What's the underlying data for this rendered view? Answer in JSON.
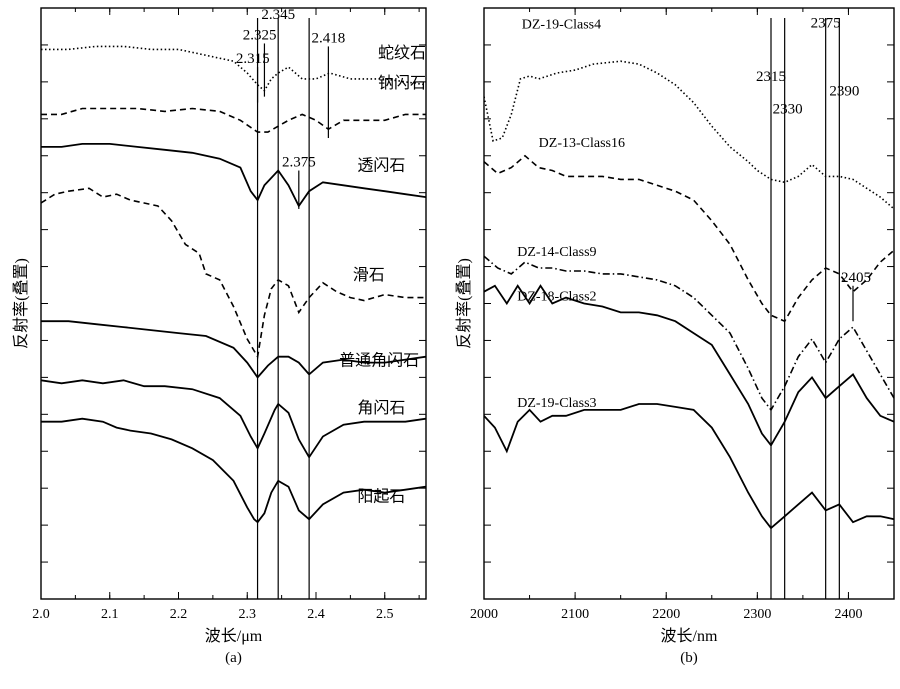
{
  "chart_data": [
    {
      "type": "line",
      "panel_label": "(a)",
      "xlabel": "波长/μm",
      "ylabel": "反射率(叠置)",
      "xlim": [
        2.0,
        2.56
      ],
      "xticks": [
        "2.0",
        "2.1",
        "2.2",
        "2.3",
        "2.4",
        "2.5"
      ],
      "xtick_values": [
        2.0,
        2.1,
        2.2,
        2.3,
        2.4,
        2.5
      ],
      "yticks_labeled": false,
      "note_y": "reflectance stacked with vertical offsets; y values are relative stacked units, 0 = bottom of panel, 100 = top",
      "ylim": [
        0,
        100
      ],
      "series": [
        {
          "name": "蛇纹石",
          "dash": "dotted",
          "x": [
            2.0,
            2.04,
            2.08,
            2.12,
            2.16,
            2.2,
            2.24,
            2.28,
            2.3,
            2.315,
            2.325,
            2.335,
            2.345,
            2.36,
            2.38,
            2.4,
            2.42,
            2.45,
            2.5,
            2.56
          ],
          "y": [
            93,
            93,
            93.5,
            93.5,
            93,
            93,
            92,
            91,
            89,
            87,
            86,
            88,
            89,
            90,
            88,
            88,
            89,
            88,
            88,
            87
          ]
        },
        {
          "name": "钠闪石",
          "dash": "dashed",
          "x": [
            2.0,
            2.03,
            2.06,
            2.1,
            2.14,
            2.18,
            2.22,
            2.26,
            2.29,
            2.315,
            2.33,
            2.345,
            2.36,
            2.38,
            2.4,
            2.418,
            2.44,
            2.47,
            2.5,
            2.53,
            2.56
          ],
          "y": [
            82,
            82,
            83,
            83,
            83,
            82.5,
            83,
            82.5,
            81,
            79,
            79,
            80,
            81,
            82,
            81,
            79.5,
            81,
            81,
            81,
            82,
            82
          ]
        },
        {
          "name": "透闪石",
          "dash": "solid",
          "x": [
            2.0,
            2.03,
            2.06,
            2.1,
            2.14,
            2.18,
            2.22,
            2.26,
            2.29,
            2.305,
            2.315,
            2.325,
            2.345,
            2.36,
            2.375,
            2.39,
            2.41,
            2.44,
            2.47,
            2.5,
            2.53,
            2.56
          ],
          "y": [
            76.5,
            76.5,
            77,
            77,
            76.5,
            76,
            75.5,
            74.5,
            73,
            69,
            67.5,
            70,
            72.5,
            70,
            66.5,
            69,
            70.5,
            70,
            69.5,
            69,
            68.5,
            68
          ]
        },
        {
          "name": "滑石",
          "dash": "dashed",
          "x": [
            2.0,
            2.02,
            2.04,
            2.07,
            2.09,
            2.11,
            2.13,
            2.15,
            2.17,
            2.19,
            2.21,
            2.23,
            2.24,
            2.26,
            2.28,
            2.3,
            2.315,
            2.325,
            2.335,
            2.345,
            2.36,
            2.375,
            2.39,
            2.41,
            2.43,
            2.45,
            2.47,
            2.5,
            2.53,
            2.56
          ],
          "y": [
            67,
            68.5,
            69,
            69.5,
            68,
            68.5,
            67.5,
            67,
            66.5,
            64,
            60,
            58.5,
            55,
            54,
            49.5,
            44,
            41,
            48,
            52.5,
            54,
            53,
            48.5,
            51,
            53.5,
            52,
            51,
            50.5,
            51.5,
            51,
            51
          ]
        },
        {
          "name": "普通角闪石",
          "dash": "solid",
          "x": [
            2.0,
            2.04,
            2.08,
            2.12,
            2.16,
            2.2,
            2.24,
            2.28,
            2.3,
            2.315,
            2.33,
            2.345,
            2.36,
            2.375,
            2.39,
            2.41,
            2.44,
            2.47,
            2.5,
            2.53,
            2.56
          ],
          "y": [
            47,
            47,
            46.5,
            46,
            45.5,
            45,
            44.5,
            42.5,
            40,
            37.5,
            39.5,
            41,
            41,
            40,
            38,
            40,
            40.5,
            40,
            40,
            40.5,
            41
          ]
        },
        {
          "name": "角闪石",
          "dash": "solid",
          "x": [
            2.0,
            2.03,
            2.06,
            2.09,
            2.12,
            2.15,
            2.18,
            2.22,
            2.26,
            2.29,
            2.305,
            2.315,
            2.325,
            2.34,
            2.345,
            2.36,
            2.375,
            2.39,
            2.41,
            2.44,
            2.47,
            2.5,
            2.53,
            2.56
          ],
          "y": [
            37,
            36.5,
            37,
            36.5,
            37,
            36,
            36,
            35.5,
            34,
            31,
            27.5,
            25.5,
            28,
            32,
            33,
            31.5,
            27,
            24,
            27.5,
            29.5,
            30,
            30,
            30,
            30.5
          ]
        },
        {
          "name": "阳起石",
          "dash": "solid",
          "x": [
            2.0,
            2.03,
            2.06,
            2.09,
            2.11,
            2.13,
            2.16,
            2.19,
            2.22,
            2.25,
            2.28,
            2.3,
            2.31,
            2.315,
            2.325,
            2.335,
            2.345,
            2.36,
            2.375,
            2.39,
            2.41,
            2.44,
            2.47,
            2.5,
            2.53,
            2.56
          ],
          "y": [
            30,
            30,
            30.5,
            30,
            29,
            28.5,
            28,
            27,
            25.5,
            23.5,
            20,
            15.5,
            13.5,
            13,
            14.5,
            18,
            20,
            19,
            15,
            13.5,
            16,
            18,
            18.5,
            18,
            18.5,
            19
          ]
        }
      ],
      "vlines": [
        2.315,
        2.345,
        2.39
      ],
      "annotations": [
        {
          "text": "2.315",
          "x": 2.315,
          "y_from": 90,
          "y_to": 84
        },
        {
          "text": "2.325",
          "x": 2.325,
          "y_from": 94,
          "y_to": 85
        },
        {
          "text": "2.345",
          "x": 2.345,
          "y_from": 97.5,
          "y_to": 97.5
        },
        {
          "text": "2.418",
          "x": 2.418,
          "y_from": 93.5,
          "y_to": 78
        },
        {
          "text": "2.375",
          "x": 2.375,
          "y_from": 72.5,
          "y_to": 66
        }
      ]
    },
    {
      "type": "line",
      "panel_label": "(b)",
      "xlabel": "波长/nm",
      "ylabel": "反射率(叠置)",
      "xlim": [
        2000,
        2450
      ],
      "xticks": [
        "2000",
        "2100",
        "2200",
        "2300",
        "2400"
      ],
      "xtick_values": [
        2000,
        2100,
        2200,
        2300,
        2400
      ],
      "yticks_labeled": false,
      "note_y": "reflectance stacked with vertical offsets; y values are relative stacked units, 0 = bottom of panel, 100 = top",
      "ylim": [
        0,
        100
      ],
      "series": [
        {
          "name": "DZ-19-Class4",
          "dash": "dotted",
          "x": [
            2000,
            2010,
            2020,
            2030,
            2040,
            2050,
            2060,
            2070,
            2080,
            2100,
            2120,
            2150,
            2170,
            2190,
            2210,
            2230,
            2250,
            2270,
            2290,
            2300,
            2315,
            2330,
            2345,
            2360,
            2375,
            2390,
            2405,
            2420,
            2435,
            2450
          ],
          "y": [
            85,
            77.5,
            78,
            82,
            88,
            88.5,
            88,
            88.5,
            89,
            89.5,
            90.5,
            91,
            90.5,
            89,
            87,
            84,
            80,
            76.5,
            74,
            72.5,
            71,
            70.5,
            71.5,
            73.5,
            71.5,
            71.5,
            71,
            69.5,
            68,
            66
          ]
        },
        {
          "name": "DZ-13-Class16",
          "dash": "dashed",
          "x": [
            2000,
            2015,
            2030,
            2045,
            2060,
            2075,
            2090,
            2110,
            2130,
            2150,
            2170,
            2190,
            2210,
            2230,
            2250,
            2270,
            2290,
            2305,
            2315,
            2330,
            2345,
            2360,
            2375,
            2390,
            2405,
            2420,
            2435,
            2450
          ],
          "y": [
            74,
            72,
            73,
            75,
            73,
            72.5,
            71.5,
            71.5,
            71.5,
            71,
            71,
            70,
            69,
            67.5,
            64,
            60,
            54,
            50,
            48,
            47,
            51,
            54,
            56,
            55,
            52,
            54,
            57,
            59
          ]
        },
        {
          "name": "DZ-14-Class9",
          "dash": "dashdot",
          "x": [
            2000,
            2015,
            2030,
            2045,
            2060,
            2075,
            2090,
            2110,
            2130,
            2150,
            2170,
            2190,
            2210,
            2230,
            2250,
            2270,
            2290,
            2305,
            2315,
            2330,
            2345,
            2360,
            2375,
            2390,
            2405,
            2420,
            2435,
            2450
          ],
          "y": [
            58,
            56,
            55,
            57,
            56,
            56,
            55.5,
            55.5,
            55,
            55,
            54.5,
            54,
            53,
            51,
            48,
            45,
            39,
            34,
            32,
            36,
            41,
            44,
            40,
            44,
            46,
            42,
            38,
            34
          ]
        },
        {
          "name": "DZ-18-Class2",
          "dash": "solid",
          "x": [
            2000,
            2012,
            2025,
            2037,
            2050,
            2062,
            2075,
            2090,
            2110,
            2130,
            2150,
            2170,
            2190,
            2210,
            2230,
            2250,
            2270,
            2290,
            2305,
            2315,
            2330,
            2345,
            2360,
            2375,
            2390,
            2405,
            2420,
            2435,
            2450
          ],
          "y": [
            52,
            53,
            50,
            53,
            50,
            53,
            50,
            51,
            50,
            49.5,
            48.5,
            48.5,
            48,
            47,
            45,
            43,
            38,
            33,
            28,
            26,
            30,
            35,
            37.5,
            34,
            36,
            38,
            34,
            31,
            30
          ]
        },
        {
          "name": "DZ-19-Class3",
          "dash": "solid",
          "x": [
            2000,
            2012,
            2025,
            2037,
            2050,
            2062,
            2075,
            2090,
            2110,
            2130,
            2150,
            2170,
            2190,
            2210,
            2230,
            2250,
            2270,
            2290,
            2305,
            2315,
            2330,
            2345,
            2360,
            2375,
            2390,
            2405,
            2420,
            2435,
            2450
          ],
          "y": [
            31,
            29,
            25,
            30,
            32,
            30,
            31,
            31,
            32,
            32,
            32,
            33,
            33,
            32.5,
            32,
            29,
            24,
            18,
            14,
            12,
            14,
            16,
            18,
            15,
            16,
            13,
            14,
            14,
            13.5
          ]
        }
      ],
      "vlines": [
        2315,
        2330,
        2375,
        2390
      ],
      "annotations": [
        {
          "text": "2315",
          "x": 2315,
          "y_from": 87,
          "y_to": 87
        },
        {
          "text": "2330",
          "x": 2330,
          "y_from": 81.5,
          "y_to": 81.5
        },
        {
          "text": "2375",
          "x": 2375,
          "y_from": 96,
          "y_to": 96
        },
        {
          "text": "2390",
          "x": 2390,
          "y_from": 84.5,
          "y_to": 84.5
        },
        {
          "text": "2405",
          "x": 2405,
          "y_from": 53,
          "y_to": 47
        }
      ]
    }
  ]
}
